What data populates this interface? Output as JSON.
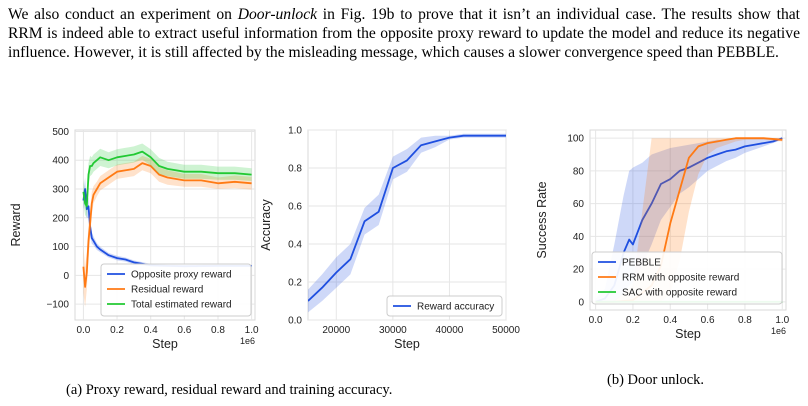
{
  "paragraph": {
    "p1": "We also conduct an experiment on ",
    "p1_em": "Door-unlock",
    "p1_rest": " in Fig. 19b to prove that it isn’t an individual case. The results show that RRM is indeed able to extract useful information from the opposite proxy reward to update the model and reduce its negative influence. However, it is still affected by the misleading message, which causes a slower convergence speed than PEBBLE."
  },
  "captions": {
    "a": "(a) Proxy reward, residual reward and training accuracy.",
    "b": "(b) Door unlock."
  },
  "colors": {
    "blue": "#1f4fe0",
    "orange": "#ff7a14",
    "green": "#22c933",
    "grid": "#e6e6e6"
  },
  "chart_data": [
    {
      "type": "line",
      "xlabel": "Step",
      "ylabel": "Reward",
      "x_offset_label": "1e6",
      "xlim": [
        -0.05,
        1.02
      ],
      "ylim": [
        -155,
        505
      ],
      "xticks": [
        0.0,
        0.2,
        0.4,
        0.6,
        0.8,
        1.0
      ],
      "xtick_labels": [
        "0.0",
        "0.2",
        "0.4",
        "0.6",
        "0.8",
        "1.0"
      ],
      "yticks": [
        -100,
        0,
        100,
        200,
        300,
        400,
        500
      ],
      "ytick_labels": [
        "−100",
        "0",
        "100",
        "200",
        "300",
        "400",
        "500"
      ],
      "grid": true,
      "legend_position": "lower-right",
      "series": [
        {
          "name": "Opposite proxy reward",
          "color": "#1f4fe0",
          "x": [
            0.0,
            0.01,
            0.02,
            0.03,
            0.04,
            0.05,
            0.06,
            0.08,
            0.1,
            0.15,
            0.2,
            0.25,
            0.3,
            0.4,
            0.5,
            0.6,
            0.8,
            1.0
          ],
          "y": [
            260,
            300,
            230,
            240,
            170,
            130,
            120,
            100,
            90,
            70,
            60,
            55,
            45,
            35,
            33,
            32,
            33,
            33
          ],
          "lower": [
            230,
            250,
            200,
            200,
            140,
            110,
            105,
            88,
            80,
            62,
            52,
            48,
            38,
            30,
            29,
            28,
            29,
            29
          ],
          "upper": [
            290,
            340,
            260,
            270,
            200,
            150,
            135,
            112,
            100,
            78,
            68,
            62,
            52,
            40,
            37,
            36,
            37,
            37
          ]
        },
        {
          "name": "Residual reward",
          "color": "#ff7a14",
          "x": [
            0.0,
            0.01,
            0.02,
            0.03,
            0.04,
            0.05,
            0.06,
            0.08,
            0.1,
            0.15,
            0.2,
            0.3,
            0.35,
            0.4,
            0.45,
            0.5,
            0.6,
            0.7,
            0.8,
            0.9,
            1.0
          ],
          "y": [
            30,
            -40,
            10,
            120,
            180,
            250,
            280,
            300,
            320,
            340,
            360,
            370,
            390,
            380,
            350,
            340,
            330,
            330,
            320,
            325,
            320
          ],
          "lower": [
            -60,
            -110,
            -50,
            60,
            130,
            210,
            250,
            275,
            295,
            315,
            335,
            345,
            365,
            355,
            325,
            315,
            308,
            308,
            300,
            303,
            298
          ],
          "upper": [
            100,
            30,
            80,
            180,
            230,
            290,
            310,
            325,
            345,
            365,
            385,
            395,
            415,
            405,
            375,
            365,
            352,
            352,
            340,
            347,
            342
          ]
        },
        {
          "name": "Total estimated reward",
          "color": "#22c933",
          "x": [
            0.0,
            0.01,
            0.02,
            0.03,
            0.04,
            0.05,
            0.06,
            0.08,
            0.1,
            0.15,
            0.2,
            0.3,
            0.35,
            0.4,
            0.45,
            0.5,
            0.6,
            0.7,
            0.8,
            0.9,
            1.0
          ],
          "y": [
            290,
            250,
            240,
            350,
            380,
            380,
            390,
            400,
            410,
            400,
            410,
            420,
            430,
            410,
            380,
            370,
            360,
            360,
            355,
            355,
            350
          ],
          "lower": [
            250,
            210,
            200,
            310,
            345,
            350,
            360,
            370,
            380,
            372,
            382,
            392,
            402,
            382,
            352,
            345,
            336,
            336,
            332,
            332,
            328
          ],
          "upper": [
            330,
            290,
            280,
            390,
            415,
            410,
            420,
            430,
            440,
            428,
            438,
            448,
            458,
            438,
            408,
            395,
            384,
            384,
            378,
            378,
            372
          ]
        }
      ]
    },
    {
      "type": "line",
      "xlabel": "Step",
      "ylabel": "Accuracy",
      "xlim": [
        15000,
        50000
      ],
      "ylim": [
        0.0,
        1.0
      ],
      "xticks": [
        20000,
        30000,
        40000,
        50000
      ],
      "xtick_labels": [
        "20000",
        "30000",
        "40000",
        "50000"
      ],
      "yticks": [
        0.0,
        0.2,
        0.4,
        0.6,
        0.8,
        1.0
      ],
      "ytick_labels": [
        "0.0",
        "0.2",
        "0.4",
        "0.6",
        "0.8",
        "1.0"
      ],
      "grid": true,
      "legend_position": "lower-right",
      "series": [
        {
          "name": "Reward accuracy",
          "color": "#1f4fe0",
          "x": [
            15000,
            17500,
            20000,
            22500,
            25000,
            27500,
            30000,
            32500,
            35000,
            37500,
            40000,
            42500,
            45000,
            47500,
            50000
          ],
          "y": [
            0.1,
            0.17,
            0.25,
            0.32,
            0.52,
            0.57,
            0.8,
            0.84,
            0.92,
            0.94,
            0.96,
            0.97,
            0.97,
            0.97,
            0.97
          ],
          "lower": [
            0.04,
            0.1,
            0.17,
            0.24,
            0.45,
            0.5,
            0.74,
            0.78,
            0.88,
            0.91,
            0.95,
            0.96,
            0.96,
            0.96,
            0.96
          ],
          "upper": [
            0.16,
            0.24,
            0.33,
            0.4,
            0.59,
            0.66,
            0.86,
            0.9,
            0.96,
            0.97,
            0.97,
            0.98,
            0.98,
            0.98,
            0.98
          ]
        }
      ]
    },
    {
      "type": "line",
      "xlabel": "Step",
      "ylabel": "Success Rate",
      "x_offset_label": "1e6",
      "xlim": [
        -0.03,
        1.02
      ],
      "ylim": [
        -5,
        105
      ],
      "xticks": [
        0.0,
        0.2,
        0.4,
        0.6,
        0.8,
        1.0
      ],
      "xtick_labels": [
        "0.0",
        "0.2",
        "0.4",
        "0.6",
        "0.8",
        "1.0"
      ],
      "yticks": [
        0,
        20,
        40,
        60,
        80,
        100
      ],
      "ytick_labels": [
        "0",
        "20",
        "40",
        "60",
        "80",
        "100"
      ],
      "grid": true,
      "legend_position": "lower-right",
      "series": [
        {
          "name": "PEBBLE",
          "color": "#1f4fe0",
          "x": [
            0.0,
            0.05,
            0.1,
            0.15,
            0.18,
            0.2,
            0.25,
            0.3,
            0.35,
            0.4,
            0.45,
            0.5,
            0.55,
            0.6,
            0.65,
            0.7,
            0.75,
            0.8,
            0.85,
            0.9,
            0.95,
            1.0
          ],
          "y": [
            0,
            2,
            10,
            30,
            38,
            35,
            50,
            60,
            72,
            75,
            80,
            82,
            85,
            88,
            90,
            92,
            93,
            95,
            96,
            97,
            98,
            100
          ],
          "lower": [
            0,
            0,
            0,
            5,
            10,
            12,
            22,
            35,
            50,
            58,
            66,
            70,
            75,
            80,
            83,
            86,
            88,
            91,
            93,
            95,
            97,
            99
          ],
          "upper": [
            2,
            8,
            35,
            65,
            80,
            82,
            85,
            90,
            92,
            94,
            95,
            96,
            97,
            98,
            99,
            99,
            100,
            100,
            100,
            100,
            100,
            100
          ]
        },
        {
          "name": "RRM with opposite reward",
          "color": "#ff7a14",
          "x": [
            0.0,
            0.1,
            0.2,
            0.3,
            0.35,
            0.4,
            0.45,
            0.5,
            0.55,
            0.6,
            0.65,
            0.7,
            0.75,
            0.8,
            0.9,
            1.0
          ],
          "y": [
            0,
            0,
            1,
            10,
            22,
            48,
            68,
            88,
            95,
            97,
            98,
            99,
            100,
            100,
            100,
            99
          ],
          "lower": [
            0,
            0,
            0,
            0,
            0,
            5,
            25,
            55,
            78,
            90,
            94,
            96,
            98,
            99,
            99,
            98
          ],
          "upper": [
            0,
            1,
            10,
            100,
            100,
            100,
            100,
            100,
            100,
            100,
            100,
            100,
            100,
            100,
            100,
            100
          ]
        },
        {
          "name": "SAC with opposite reward",
          "color": "#22c933",
          "x": [
            0.0,
            0.2,
            0.4,
            0.6,
            0.8,
            1.0
          ],
          "y": [
            0,
            0,
            0,
            0,
            0,
            0
          ],
          "lower": [
            0,
            0,
            0,
            0,
            0,
            0
          ],
          "upper": [
            0,
            0,
            0,
            0,
            0,
            0
          ]
        }
      ]
    }
  ]
}
